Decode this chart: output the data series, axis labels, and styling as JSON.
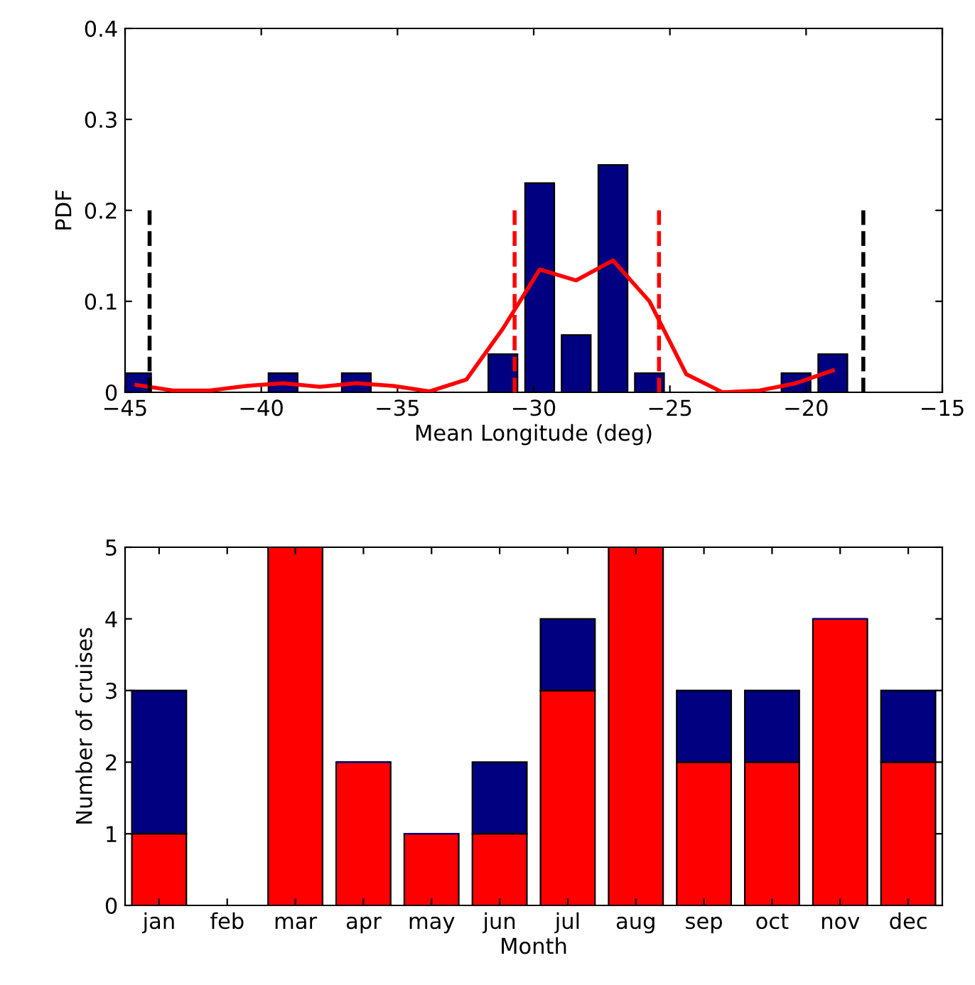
{
  "chart_data": [
    {
      "type": "bar",
      "xlabel": "Mean Longitude (deg)",
      "ylabel": "PDF",
      "x": [
        -44.58,
        -43.23,
        -41.89,
        -40.54,
        -39.2,
        -37.85,
        -36.51,
        -35.16,
        -33.82,
        -32.47,
        -31.13,
        -29.78,
        -28.44,
        -27.09,
        -25.75,
        -24.4,
        -23.06,
        -21.71,
        -20.37,
        -19.02
      ],
      "series": [
        {
          "type": "bar",
          "color": "#000080",
          "values": [
            0.021,
            0,
            0,
            0,
            0.021,
            0,
            0.021,
            0,
            0,
            0,
            0.042,
            0.23,
            0.063,
            0.25,
            0.021,
            0,
            0,
            0,
            0.021,
            0.042
          ]
        },
        {
          "type": "line",
          "color": "#ff0000",
          "values": [
            0.008,
            0.002,
            0.002,
            0.007,
            0.01,
            0.006,
            0.01,
            0.007,
            0.001,
            0.014,
            0.07,
            0.135,
            0.123,
            0.145,
            0.1,
            0.02,
            0,
            0.002,
            0.01,
            0.024
          ]
        }
      ],
      "xlim": [
        -45,
        -15
      ],
      "xticks": [
        {
          "value": -45,
          "label": "−45"
        },
        {
          "value": -40,
          "label": "−40"
        },
        {
          "value": -35,
          "label": "−35"
        },
        {
          "value": -30,
          "label": "−30"
        },
        {
          "value": -25,
          "label": "−25"
        },
        {
          "value": -20,
          "label": "−20"
        },
        {
          "value": -15,
          "label": "−15"
        }
      ],
      "ylim": [
        0,
        0.4
      ],
      "yticks": [
        0,
        0.1,
        0.2,
        0.3,
        0.4
      ],
      "ref_lines": [
        {
          "axis": "x",
          "value": -44.1,
          "color": "#000000",
          "line_style": "dashed"
        },
        {
          "axis": "x",
          "value": -30.7,
          "color": "#ff0000",
          "line_style": "dashed"
        },
        {
          "axis": "x",
          "value": -25.4,
          "color": "#ff0000",
          "line_style": "dashed"
        },
        {
          "axis": "x",
          "value": -17.9,
          "color": "#000000",
          "line_style": "dashed"
        }
      ],
      "grid": false,
      "legend": false
    },
    {
      "type": "bar",
      "stacked": true,
      "xlabel": "Month",
      "ylabel": "Number of cruises",
      "categories": [
        "jan",
        "feb",
        "mar",
        "apr",
        "may",
        "jun",
        "jul",
        "aug",
        "sep",
        "oct",
        "nov",
        "dec"
      ],
      "series": [
        {
          "color": "#ff0000",
          "values": [
            1,
            0,
            5,
            2,
            1,
            1,
            3,
            5,
            2,
            2,
            4,
            2
          ]
        },
        {
          "color": "#000080",
          "values": [
            2,
            0,
            0,
            0,
            0,
            1,
            1,
            0,
            1,
            1,
            0,
            1
          ]
        }
      ],
      "ylim": [
        0,
        5
      ],
      "yticks": [
        0,
        1,
        2,
        3,
        4,
        5
      ],
      "grid": false,
      "legend": false
    }
  ]
}
